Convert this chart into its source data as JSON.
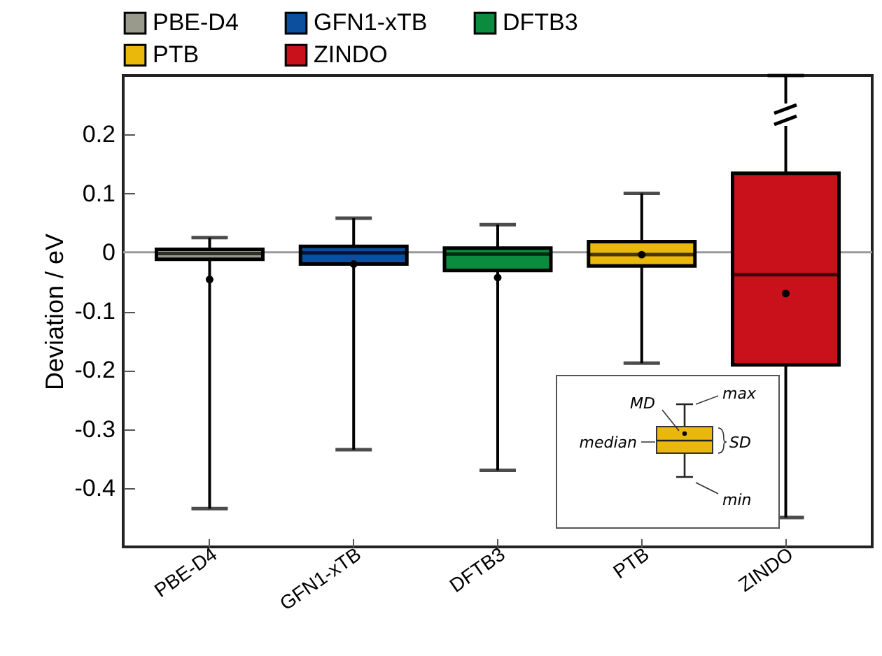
{
  "chart_data": {
    "type": "box",
    "ylabel": "Deviation / eV",
    "categories": [
      "PBE-D4",
      "GFN1-xTB",
      "DFTB3",
      "PTB",
      "ZINDO"
    ],
    "series": [
      {
        "name": "PBE-D4",
        "color": "#9a9a8c",
        "boxes": [
          {
            "low": -0.435,
            "q1": -0.012,
            "median": -0.002,
            "q3": 0.005,
            "high": 0.025,
            "mean": -0.046
          },
          null,
          null,
          null,
          null
        ]
      },
      {
        "name": "GFN1-xTB",
        "color": "#0b4f9e",
        "boxes": [
          null,
          {
            "low": -0.335,
            "q1": -0.02,
            "median": -0.001,
            "q3": 0.01,
            "high": 0.058,
            "mean": -0.02
          },
          null,
          null,
          null
        ]
      },
      {
        "name": "DFTB3",
        "color": "#0a8b3d",
        "boxes": [
          null,
          null,
          {
            "low": -0.37,
            "q1": -0.031,
            "median": -0.003,
            "q3": 0.007,
            "high": 0.047,
            "mean": -0.043
          },
          null,
          null
        ]
      },
      {
        "name": "PTB",
        "color": "#e9b80b",
        "boxes": [
          null,
          null,
          null,
          {
            "low": -0.188,
            "q1": -0.023,
            "median": -0.004,
            "q3": 0.018,
            "high": 0.1,
            "mean": -0.004
          },
          null
        ]
      },
      {
        "name": "ZINDO",
        "color": "#c8111b",
        "boxes": [
          null,
          null,
          null,
          null,
          {
            "low": -0.45,
            "q1": -0.191,
            "median": -0.038,
            "q3": 0.134,
            "high": 0.3,
            "mean": -0.07
          }
        ]
      }
    ],
    "ylim": [
      -0.5,
      0.3
    ],
    "yticks": [
      -0.4,
      -0.3,
      -0.2,
      -0.1,
      0,
      0.1,
      0.2
    ],
    "ref_lines": [
      {
        "axis": "y",
        "value": 0,
        "color": "#999999"
      }
    ],
    "legend": "top",
    "grid": false,
    "annotations": [
      "max",
      "MD",
      "median",
      "SD",
      "min"
    ]
  }
}
